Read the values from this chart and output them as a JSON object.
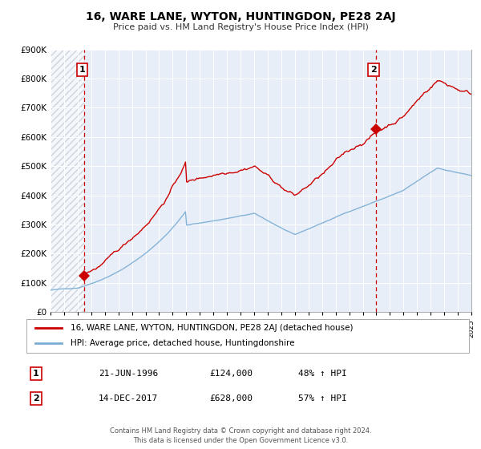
{
  "title": "16, WARE LANE, WYTON, HUNTINGDON, PE28 2AJ",
  "subtitle": "Price paid vs. HM Land Registry's House Price Index (HPI)",
  "legend_label_red": "16, WARE LANE, WYTON, HUNTINGDON, PE28 2AJ (detached house)",
  "legend_label_blue": "HPI: Average price, detached house, Huntingdonshire",
  "transaction1_label": "1",
  "transaction1_date": "21-JUN-1996",
  "transaction1_price": "£124,000",
  "transaction1_hpi": "48% ↑ HPI",
  "transaction2_label": "2",
  "transaction2_date": "14-DEC-2017",
  "transaction2_price": "£628,000",
  "transaction2_hpi": "57% ↑ HPI",
  "transaction1_year": 1996.47,
  "transaction1_value": 124000,
  "transaction2_year": 2017.95,
  "transaction2_value": 628000,
  "footer_line1": "Contains HM Land Registry data © Crown copyright and database right 2024.",
  "footer_line2": "This data is licensed under the Open Government Licence v3.0.",
  "color_red": "#cc0000",
  "color_blue": "#7aadd4",
  "color_dashed": "#cc0000",
  "bg_color": "#e8eef8",
  "ylim_max": 900000,
  "xlim_start": 1994.0,
  "xlim_end": 2025.0
}
